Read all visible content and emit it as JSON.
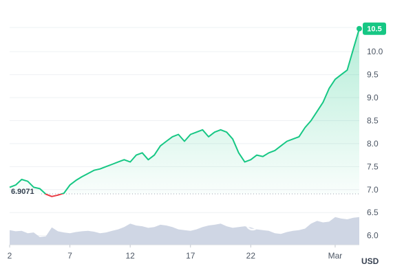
{
  "chart_data": {
    "type": "line",
    "currency": "USD",
    "watermark": "CoinMa",
    "baseline_value": 6.9071,
    "baseline_label": "6.9071",
    "last_value": 10.5,
    "last_label": "10.5",
    "ylim": [
      5.8,
      10.75
    ],
    "y_ticks": [
      "6.0",
      "6.5",
      "7.0",
      "7.5",
      "8.0",
      "8.5",
      "9.0",
      "9.5",
      "10.0"
    ],
    "x_tick_labels": [
      "2",
      "7",
      "12",
      "17",
      "22",
      "Mar"
    ],
    "x_tick_days": [
      2,
      7,
      12,
      17,
      22,
      29
    ],
    "xlim": [
      2,
      31
    ],
    "colors": {
      "up": "#16c784",
      "down": "#ea3943",
      "volume": "#cfd6e4",
      "badge": "#16c784"
    },
    "series": [
      {
        "x": [
          2.0,
          2.5,
          3.0,
          3.5,
          4.0,
          4.5,
          5.0,
          5.5,
          6.0,
          6.5,
          7.0,
          7.5,
          8.0,
          8.5,
          9.0,
          9.5,
          10.0,
          10.5,
          11.0,
          11.5,
          12.0,
          12.5,
          13.0,
          13.5,
          14.0,
          14.5,
          15.0,
          15.5,
          16.0,
          16.5,
          17.0,
          17.5,
          18.0,
          18.5,
          19.0,
          19.5,
          20.0,
          20.5,
          21.0,
          21.5,
          22.0,
          22.5,
          23.0,
          23.5,
          24.0,
          24.5,
          25.0,
          25.5,
          26.0,
          26.5,
          27.0,
          27.5,
          28.0,
          28.5,
          29.0,
          29.5,
          30.0,
          30.5,
          31.0
        ],
        "values": [
          7.05,
          7.1,
          7.22,
          7.18,
          7.05,
          7.02,
          6.9,
          6.85,
          6.88,
          6.92,
          7.1,
          7.2,
          7.28,
          7.35,
          7.42,
          7.45,
          7.5,
          7.55,
          7.6,
          7.65,
          7.6,
          7.75,
          7.8,
          7.65,
          7.75,
          7.95,
          8.05,
          8.15,
          8.2,
          8.05,
          8.2,
          8.25,
          8.3,
          8.15,
          8.25,
          8.3,
          8.25,
          8.1,
          7.8,
          7.6,
          7.65,
          7.75,
          7.72,
          7.8,
          7.85,
          7.95,
          8.05,
          8.1,
          8.15,
          8.35,
          8.5,
          8.7,
          8.9,
          9.2,
          9.4,
          9.5,
          9.6,
          10.05,
          10.5
        ]
      }
    ],
    "volume": [
      0.38,
      0.35,
      0.36,
      0.3,
      0.32,
      0.2,
      0.22,
      0.45,
      0.35,
      0.32,
      0.3,
      0.33,
      0.35,
      0.36,
      0.34,
      0.3,
      0.32,
      0.36,
      0.4,
      0.46,
      0.55,
      0.5,
      0.48,
      0.44,
      0.46,
      0.52,
      0.5,
      0.46,
      0.4,
      0.38,
      0.36,
      0.4,
      0.46,
      0.5,
      0.52,
      0.55,
      0.48,
      0.44,
      0.46,
      0.48,
      0.45,
      0.4,
      0.38,
      0.36,
      0.3,
      0.28,
      0.33,
      0.36,
      0.38,
      0.42,
      0.55,
      0.62,
      0.58,
      0.6,
      0.72,
      0.68,
      0.66,
      0.7,
      0.72
    ]
  }
}
